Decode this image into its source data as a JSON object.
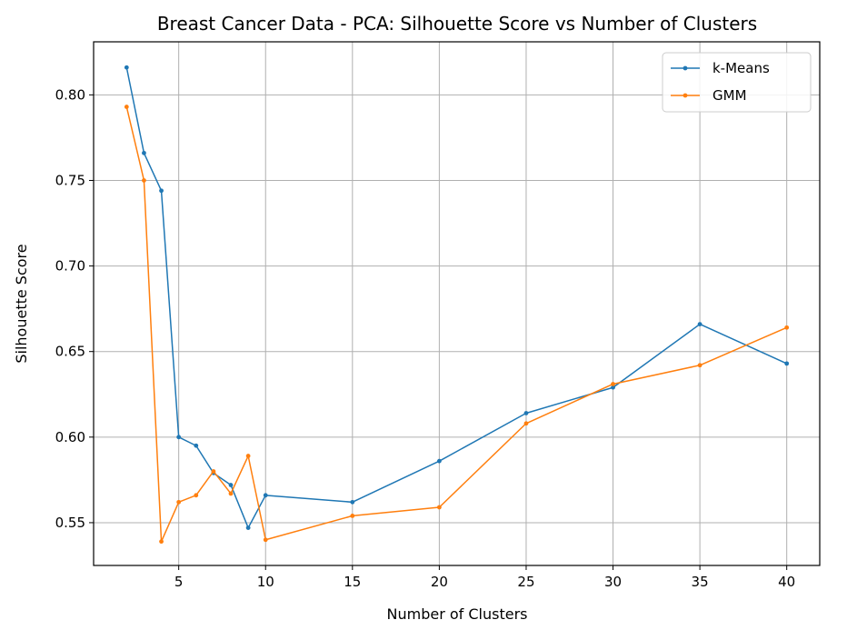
{
  "chart_data": {
    "type": "line",
    "title": "Breast Cancer Data - PCA: Silhouette Score vs Number of Clusters",
    "xlabel": "Number of Clusters",
    "ylabel": "Silhouette Score",
    "xlim": [
      0.1,
      41.9
    ],
    "ylim": [
      0.525,
      0.831
    ],
    "xticks": [
      5,
      10,
      15,
      20,
      25,
      30,
      35,
      40
    ],
    "yticks": [
      0.55,
      0.6,
      0.65,
      0.7,
      0.75,
      0.8
    ],
    "ytick_labels": [
      "0.55",
      "0.60",
      "0.65",
      "0.70",
      "0.75",
      "0.80"
    ],
    "grid": true,
    "legend_position": "top-right",
    "x": [
      2,
      3,
      4,
      5,
      6,
      7,
      8,
      9,
      10,
      15,
      20,
      25,
      30,
      35,
      40
    ],
    "series": [
      {
        "name": "k-Means",
        "color": "#1f77b4",
        "values": [
          0.816,
          0.766,
          0.744,
          0.6,
          0.595,
          0.579,
          0.572,
          0.547,
          0.566,
          0.562,
          0.586,
          0.614,
          0.629,
          0.666,
          0.643
        ]
      },
      {
        "name": "GMM",
        "color": "#ff7f0e",
        "values": [
          0.793,
          0.75,
          0.539,
          0.562,
          0.566,
          0.58,
          0.567,
          0.589,
          0.54,
          0.554,
          0.559,
          0.608,
          0.631,
          0.642,
          0.664
        ]
      }
    ]
  }
}
